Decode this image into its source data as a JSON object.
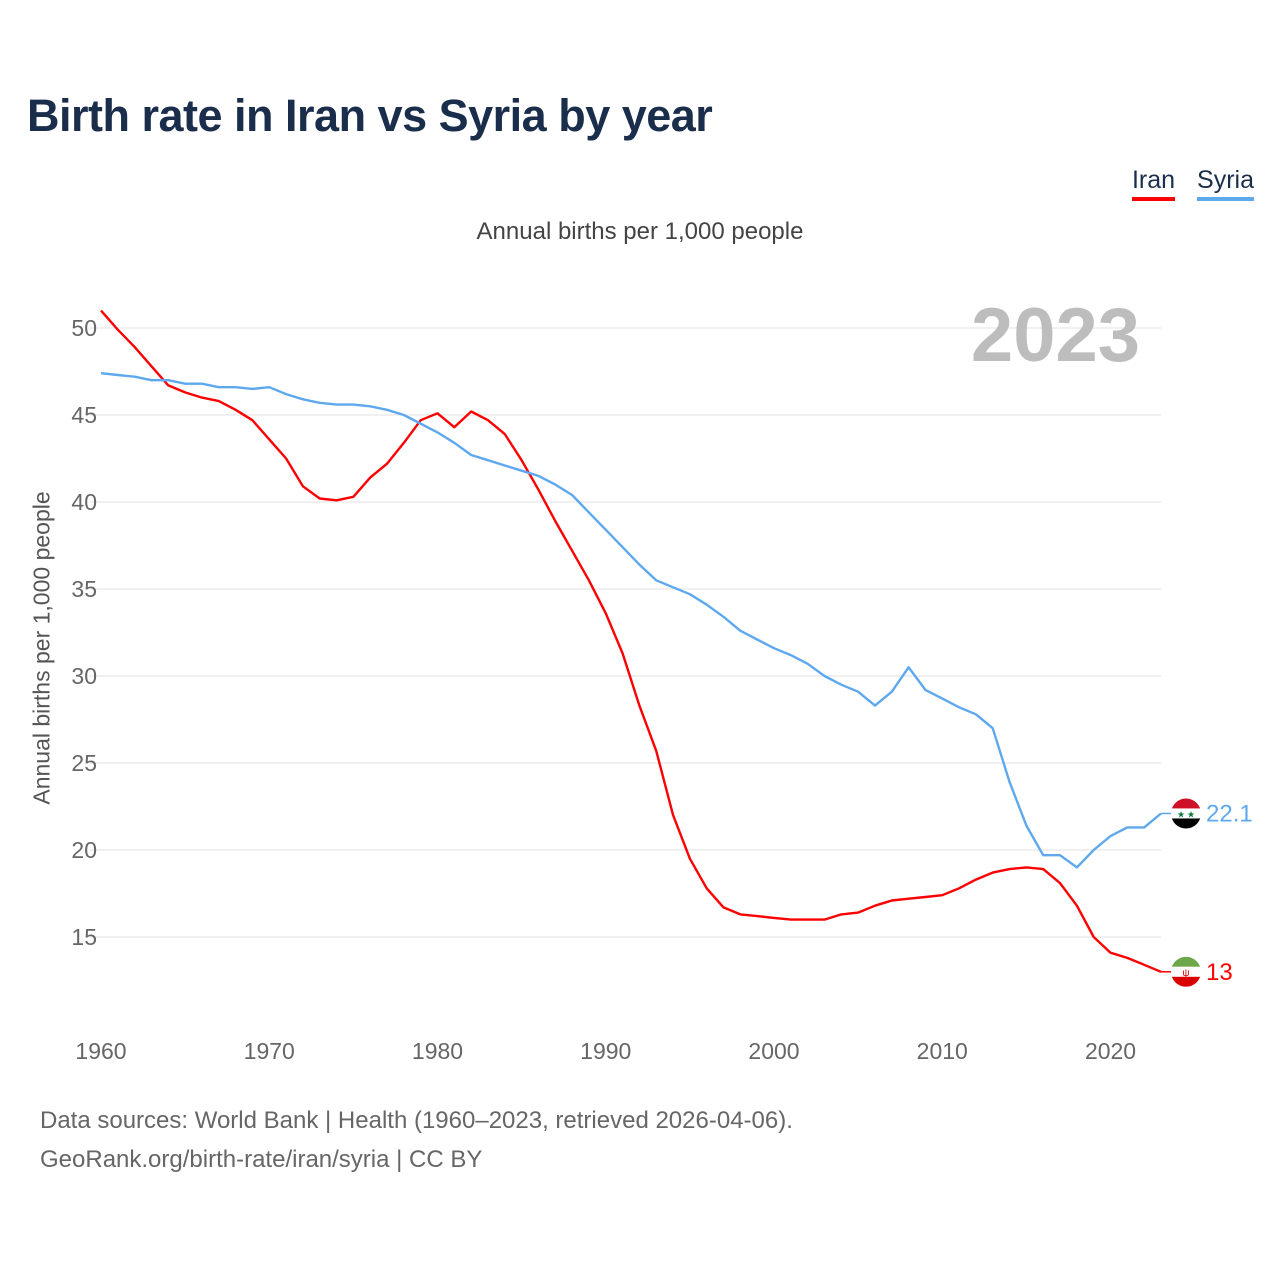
{
  "chart_data": {
    "type": "line",
    "title": "Birth rate in Iran vs Syria by year",
    "subtitle": "Annual births per 1,000 people",
    "xlabel": "",
    "ylabel": "Annual births per 1,000 people",
    "xlim": [
      1960,
      2023
    ],
    "ylim": [
      12,
      51
    ],
    "x_ticks": [
      1960,
      1970,
      1980,
      1990,
      2000,
      2010,
      2020
    ],
    "y_ticks": [
      15,
      20,
      25,
      30,
      35,
      40,
      45,
      50
    ],
    "grid": true,
    "legend_position": "top-right",
    "highlight_year": "2023",
    "x_start": 1960,
    "series": [
      {
        "name": "Iran",
        "color": "#ff0000",
        "end_label": "13",
        "values": [
          51.0,
          49.9,
          48.9,
          47.8,
          46.7,
          46.3,
          46.0,
          45.8,
          45.3,
          44.7,
          43.6,
          42.5,
          40.9,
          40.2,
          40.1,
          40.3,
          41.4,
          42.2,
          43.4,
          44.7,
          45.1,
          44.3,
          45.2,
          44.7,
          43.9,
          42.4,
          40.7,
          38.9,
          37.2,
          35.5,
          33.6,
          31.3,
          28.3,
          25.7,
          22.0,
          19.5,
          17.8,
          16.7,
          16.3,
          16.2,
          16.1,
          16.0,
          16.0,
          16.0,
          16.3,
          16.4,
          16.8,
          17.1,
          17.2,
          17.3,
          17.4,
          17.8,
          18.3,
          18.7,
          18.9,
          19.0,
          18.9,
          18.1,
          16.8,
          15.0,
          14.1,
          13.8,
          13.4,
          13.0
        ]
      },
      {
        "name": "Syria",
        "color": "#5ea8ee",
        "end_label": "22.1",
        "values": [
          47.4,
          47.3,
          47.2,
          47.0,
          47.0,
          46.8,
          46.8,
          46.6,
          46.6,
          46.5,
          46.6,
          46.2,
          45.9,
          45.7,
          45.6,
          45.6,
          45.5,
          45.3,
          45.0,
          44.5,
          44.0,
          43.4,
          42.7,
          42.4,
          42.1,
          41.8,
          41.5,
          41.0,
          40.4,
          39.4,
          38.4,
          37.4,
          36.4,
          35.5,
          35.1,
          34.7,
          34.1,
          33.4,
          32.6,
          32.1,
          31.6,
          31.2,
          30.7,
          30.0,
          29.5,
          29.1,
          28.3,
          29.1,
          30.5,
          29.2,
          28.7,
          28.2,
          27.8,
          27.0,
          23.9,
          21.4,
          19.7,
          19.7,
          19.0,
          20.0,
          20.8,
          21.3,
          21.3,
          22.1
        ]
      }
    ]
  },
  "footer": {
    "line1": "Data sources: World Bank | Health (1960–2023, retrieved 2026-04-06).",
    "line2": "GeoRank.org/birth-rate/iran/syria | CC BY"
  }
}
